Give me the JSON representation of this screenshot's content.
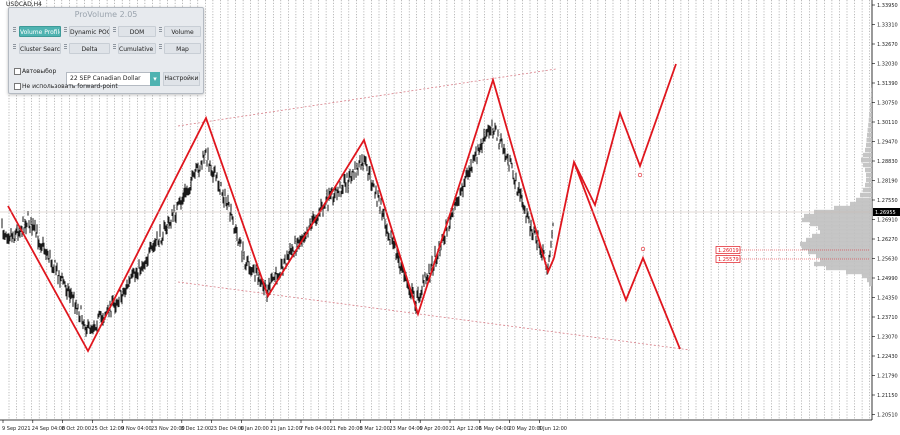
{
  "chart": {
    "symbol": "USDCAD,H4",
    "current_price": "1.26955",
    "level_labels": [
      "1.26019",
      "1.25579"
    ],
    "price_axis": [
      "1.33950",
      "1.33310",
      "1.32670",
      "1.32030",
      "1.31390",
      "1.30750",
      "1.30110",
      "1.29470",
      "1.28830",
      "1.28190",
      "1.27550",
      "1.26910",
      "1.26270",
      "1.25630",
      "1.24990",
      "1.24350",
      "1.23710",
      "1.23070",
      "1.22430",
      "1.21790",
      "1.21150",
      "1.20510"
    ],
    "time_axis": [
      "9 Sep 2021",
      "24 Sep 04:00",
      "8 Oct 20:00",
      "25 Oct 12:00",
      "9 Nov 04:00",
      "23 Nov 20:00",
      "8 Dec 12:00",
      "23 Dec 04:00",
      "6 Jan 20:00",
      "21 Jan 12:00",
      "7 Feb 04:00",
      "21 Feb 20:00",
      "8 Mar 12:00",
      "23 Mar 04:00",
      "6 Apr 20:00",
      "21 Apr 12:00",
      "6 May 04:00",
      "20 May 20:00",
      "6 Jun 12:00"
    ]
  },
  "colors": {
    "candles": "#000000",
    "zigzag": "#e0161e",
    "channel": "#d9808a",
    "session_lines": "#8f8f8f",
    "profile": "#c0c0c0",
    "panel_accent": "#4fb3b1"
  },
  "panel": {
    "title": "ProVolume 2.05",
    "buttons": [
      "Volume Profile",
      "Dynamic POC",
      "DOM",
      "Volume",
      "Cluster Search",
      "Delta",
      "Cumulative Δ",
      "Map"
    ],
    "active_button": "Volume Profile",
    "auto_label": "Автовыбор",
    "instrument": "22 SEP Canadian Dollar",
    "settings_label": "Настройки",
    "forward_point_label": "Не использовать forward-point"
  },
  "icons": [
    "dropdown-arrow-icon",
    "checkbox-icon",
    "grip-icon",
    "cross-marker-icon"
  ]
}
